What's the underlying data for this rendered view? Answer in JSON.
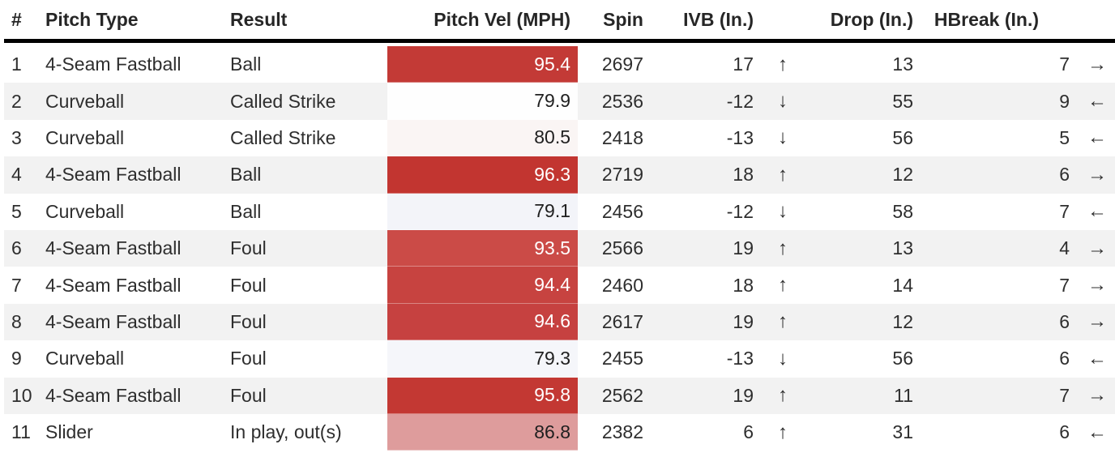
{
  "page": {
    "background": "#ffffff"
  },
  "table": {
    "header": {
      "num": "#",
      "pitch_type": "Pitch Type",
      "result": "Result",
      "velocity": "Pitch Vel (MPH)",
      "spin": "Spin",
      "ivb": "IVB (In.)",
      "drop": "Drop (In.)",
      "hbreak": "HBreak (In.)"
    },
    "style": {
      "header_text": "#262626",
      "body_text": "#2e2e2e",
      "divider": "#000000",
      "stripe": "#f2f2f2",
      "velocity_red_max": "#c23530",
      "velocity_pink_mid": "#de9c9c",
      "velocity_white_low": "#fefefe"
    },
    "arrow_glyphs": {
      "up": "↑",
      "down": "↓",
      "left": "←",
      "right": "→"
    },
    "rows": [
      {
        "num": "1",
        "pitch_type": "4-Seam Fastball",
        "result": "Ball",
        "velocity": "95.4",
        "vel_bg": "#c33a36",
        "vel_text": "#ffffff",
        "spin": "2697",
        "ivb": "17",
        "ivb_arrow": "up",
        "drop": "13",
        "hbreak": "7",
        "hbreak_arrow": "right"
      },
      {
        "num": "2",
        "pitch_type": "Curveball",
        "result": "Called Strike",
        "velocity": "79.9",
        "vel_bg": "#fefefe",
        "vel_text": "#1f1f1f",
        "spin": "2536",
        "ivb": "-12",
        "ivb_arrow": "down",
        "drop": "55",
        "hbreak": "9",
        "hbreak_arrow": "left"
      },
      {
        "num": "3",
        "pitch_type": "Curveball",
        "result": "Called Strike",
        "velocity": "80.5",
        "vel_bg": "#faf5f4",
        "vel_text": "#1f1f1f",
        "spin": "2418",
        "ivb": "-13",
        "ivb_arrow": "down",
        "drop": "56",
        "hbreak": "5",
        "hbreak_arrow": "left"
      },
      {
        "num": "4",
        "pitch_type": "4-Seam Fastball",
        "result": "Ball",
        "velocity": "96.3",
        "vel_bg": "#c23530",
        "vel_text": "#ffffff",
        "spin": "2719",
        "ivb": "18",
        "ivb_arrow": "up",
        "drop": "12",
        "hbreak": "6",
        "hbreak_arrow": "right"
      },
      {
        "num": "5",
        "pitch_type": "Curveball",
        "result": "Ball",
        "velocity": "79.1",
        "vel_bg": "#f3f4f9",
        "vel_text": "#1f1f1f",
        "spin": "2456",
        "ivb": "-12",
        "ivb_arrow": "down",
        "drop": "58",
        "hbreak": "7",
        "hbreak_arrow": "left"
      },
      {
        "num": "6",
        "pitch_type": "4-Seam Fastball",
        "result": "Foul",
        "velocity": "93.5",
        "vel_bg": "#cb4b47",
        "vel_text": "#ffffff",
        "spin": "2566",
        "ivb": "19",
        "ivb_arrow": "up",
        "drop": "13",
        "hbreak": "4",
        "hbreak_arrow": "right"
      },
      {
        "num": "7",
        "pitch_type": "4-Seam Fastball",
        "result": "Foul",
        "velocity": "94.4",
        "vel_bg": "#c74340",
        "vel_text": "#ffffff",
        "spin": "2460",
        "ivb": "18",
        "ivb_arrow": "up",
        "drop": "14",
        "hbreak": "7",
        "hbreak_arrow": "right"
      },
      {
        "num": "8",
        "pitch_type": "4-Seam Fastball",
        "result": "Foul",
        "velocity": "94.6",
        "vel_bg": "#c64140",
        "vel_text": "#ffffff",
        "spin": "2617",
        "ivb": "19",
        "ivb_arrow": "up",
        "drop": "12",
        "hbreak": "6",
        "hbreak_arrow": "right"
      },
      {
        "num": "9",
        "pitch_type": "Curveball",
        "result": "Foul",
        "velocity": "79.3",
        "vel_bg": "#f5f6fa",
        "vel_text": "#1f1f1f",
        "spin": "2455",
        "ivb": "-13",
        "ivb_arrow": "down",
        "drop": "56",
        "hbreak": "6",
        "hbreak_arrow": "left"
      },
      {
        "num": "10",
        "pitch_type": "4-Seam Fastball",
        "result": "Foul",
        "velocity": "95.8",
        "vel_bg": "#c33833",
        "vel_text": "#ffffff",
        "spin": "2562",
        "ivb": "19",
        "ivb_arrow": "up",
        "drop": "11",
        "hbreak": "7",
        "hbreak_arrow": "right"
      },
      {
        "num": "11",
        "pitch_type": "Slider",
        "result": "In play, out(s)",
        "velocity": "86.8",
        "vel_bg": "#de9c9c",
        "vel_text": "#1f1f1f",
        "spin": "2382",
        "ivb": "6",
        "ivb_arrow": "up",
        "drop": "31",
        "hbreak": "6",
        "hbreak_arrow": "left"
      }
    ]
  }
}
